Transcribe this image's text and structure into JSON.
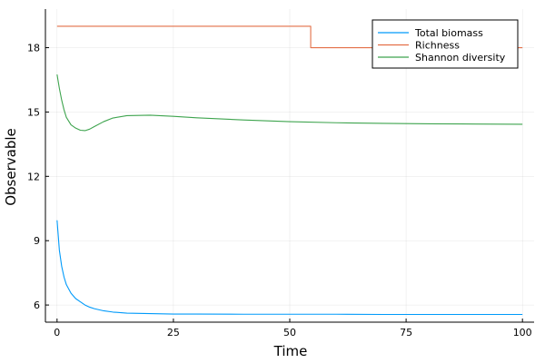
{
  "chart_data": {
    "type": "line",
    "title": "",
    "xlabel": "Time",
    "ylabel": "Observable",
    "xlim": [
      -2.5,
      102.5
    ],
    "ylim": [
      5.2,
      19.8
    ],
    "xticks": [
      0,
      25,
      50,
      75,
      100
    ],
    "yticks": [
      6,
      9,
      12,
      15,
      18
    ],
    "grid": true,
    "legend": "top-right",
    "series": [
      {
        "name": "Total biomass",
        "color": "#009AFA",
        "x": [
          0,
          0.5,
          1,
          1.5,
          2,
          3,
          4,
          5,
          6,
          7,
          8,
          10,
          12,
          15,
          20,
          25,
          30,
          40,
          50,
          60,
          70,
          80,
          90,
          100
        ],
        "y": [
          9.95,
          8.55,
          7.8,
          7.3,
          6.95,
          6.55,
          6.3,
          6.15,
          6.0,
          5.9,
          5.83,
          5.73,
          5.67,
          5.62,
          5.6,
          5.58,
          5.58,
          5.57,
          5.57,
          5.57,
          5.56,
          5.56,
          5.56,
          5.56
        ]
      },
      {
        "name": "Richness",
        "color": "#E36F47",
        "x": [
          0,
          54.5,
          54.5,
          100
        ],
        "y": [
          19,
          19,
          18,
          18
        ]
      },
      {
        "name": "Shannon diversity",
        "color": "#3EA44E",
        "x": [
          0,
          0.5,
          1,
          1.5,
          2,
          3,
          4,
          5,
          6,
          7,
          8,
          10,
          12,
          15,
          20,
          25,
          30,
          40,
          50,
          60,
          70,
          80,
          90,
          100
        ],
        "y": [
          16.75,
          16.1,
          15.55,
          15.1,
          14.75,
          14.4,
          14.25,
          14.15,
          14.13,
          14.2,
          14.32,
          14.55,
          14.72,
          14.83,
          14.85,
          14.8,
          14.73,
          14.63,
          14.55,
          14.5,
          14.47,
          14.45,
          14.44,
          14.43
        ]
      }
    ]
  }
}
